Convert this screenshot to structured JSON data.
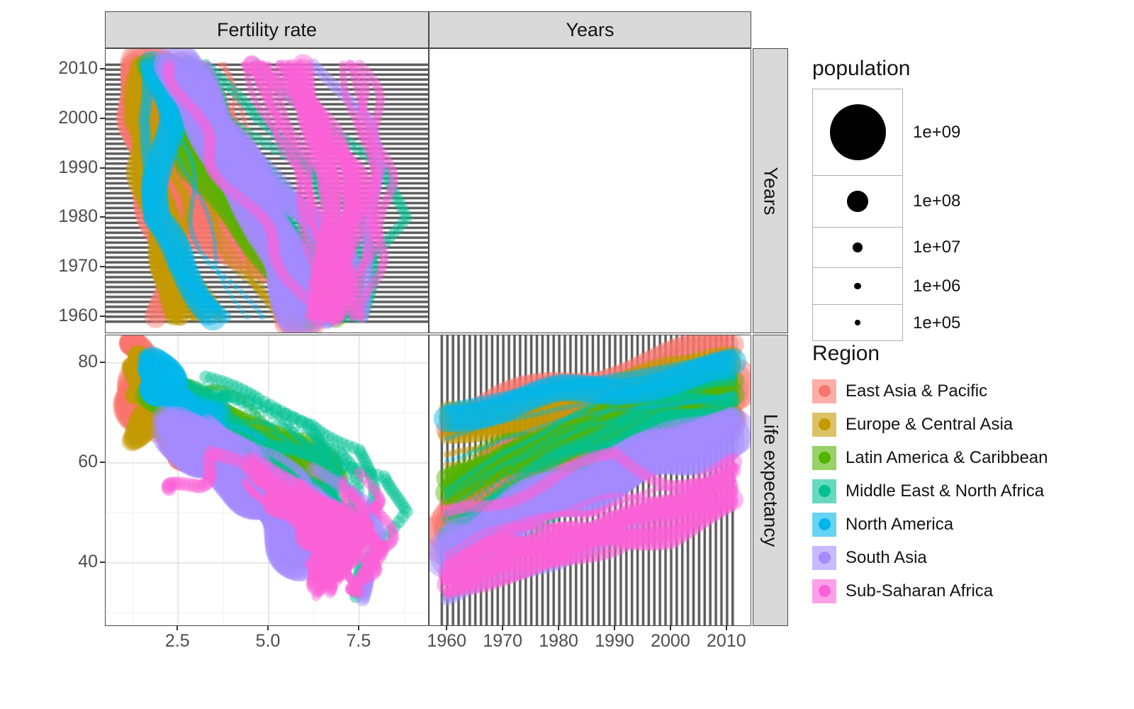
{
  "figure": {
    "facets": {
      "col_labels": [
        "Fertility rate",
        "Years"
      ],
      "row_labels": [
        "Years",
        "Life expectancy"
      ]
    },
    "legend_population": {
      "title": "population",
      "entries": [
        {
          "label": "1e+09",
          "value": 1000000000.0
        },
        {
          "label": "1e+08",
          "value": 100000000.0
        },
        {
          "label": "1e+07",
          "value": 10000000.0
        },
        {
          "label": "1e+06",
          "value": 1000000.0
        },
        {
          "label": "1e+05",
          "value": 100000.0
        }
      ]
    },
    "legend_region": {
      "title": "Region",
      "entries": [
        {
          "label": "East Asia & Pacific",
          "color": "#F8766D"
        },
        {
          "label": "Europe & Central Asia",
          "color": "#C49A00"
        },
        {
          "label": "Latin America & Caribbean",
          "color": "#53B400"
        },
        {
          "label": "Middle East & North Africa",
          "color": "#00C094"
        },
        {
          "label": "North America",
          "color": "#00B6EB"
        },
        {
          "label": "South Asia",
          "color": "#A58AFF"
        },
        {
          "label": "Sub-Saharan Africa",
          "color": "#FB61D7"
        }
      ]
    }
  },
  "chart_data": {
    "type": "scatter",
    "layout": "facet_grid 2x2; columns: Fertility rate, Years; rows: Years, Life expectancy; top-right panel (Years vs Years) is empty",
    "title": "",
    "x_fertility_ticks": [
      2.5,
      5.0,
      7.5
    ],
    "x_year_ticks": [
      1960,
      1970,
      1980,
      1990,
      2000,
      2010
    ],
    "y_year_ticks": [
      2010,
      2000,
      1990,
      1980,
      1970,
      1960
    ],
    "y_life_ticks": [
      80,
      60,
      40
    ],
    "fertility_domain": [
      0.5,
      9.4
    ],
    "year_domain": [
      1956.8,
      2014.2
    ],
    "life_domain": [
      27.5,
      85.5
    ],
    "stripe_years": [
      1959,
      2011
    ],
    "knot_years": [
      1960,
      1970,
      1980,
      1990,
      2000,
      2010
    ],
    "size_scale": "point radius ~ sqrt(population), legend 1e+05 .. 1e+09",
    "regions": [
      {
        "name": "East Asia & Pacific",
        "color": "#F8766D",
        "traj": [
          {
            "pop": 1000000000.0,
            "n": 1,
            "fert": [
              5.8,
              5.7,
              2.7,
              2.3,
              1.5,
              1.6
            ],
            "life": [
              44,
              59,
              66,
              69,
              72,
              75
            ]
          },
          {
            "pop": 120000000.0,
            "n": 1,
            "fert": [
              2.0,
              2.1,
              1.8,
              1.6,
              1.4,
              1.4
            ],
            "life": [
              68,
              72,
              76,
              79,
              81,
              83
            ]
          },
          {
            "pop": 200000000.0,
            "n": 2,
            "fert": [
              5.7,
              5.5,
              4.4,
              3.1,
              2.5,
              2.4
            ],
            "life": [
              48,
              54,
              58,
              62,
              66,
              69
            ]
          },
          {
            "pop": 8000000.0,
            "n": 6,
            "fert": [
              6.4,
              6.0,
              5.0,
              4.2,
              3.6,
              3.1
            ],
            "life": [
              50,
              55,
              60,
              64,
              67,
              70
            ]
          },
          {
            "pop": 300000.0,
            "n": 8,
            "fert": [
              6.8,
              6.2,
              5.4,
              4.6,
              4.0,
              3.4
            ],
            "life": [
              48,
              54,
              59,
              63,
              66,
              69
            ]
          }
        ]
      },
      {
        "name": "Europe & Central Asia",
        "color": "#C49A00",
        "traj": [
          {
            "pop": 140000000.0,
            "n": 1,
            "fert": [
              2.6,
              2.0,
              1.9,
              1.9,
              1.2,
              1.6
            ],
            "life": [
              66,
              68,
              68,
              69,
              65,
              69
            ]
          },
          {
            "pop": 70000000.0,
            "n": 3,
            "fert": [
              2.4,
              2.2,
              1.8,
              1.5,
              1.4,
              1.5
            ],
            "life": [
              69,
              71,
              73,
              75,
              78,
              80
            ]
          },
          {
            "pop": 70000000.0,
            "n": 2,
            "fert": [
              6.3,
              5.6,
              4.5,
              3.1,
              2.4,
              2.1
            ],
            "life": [
              48,
              54,
              59,
              64,
              70,
              74
            ]
          },
          {
            "pop": 8000000.0,
            "n": 8,
            "fert": [
              3.1,
              2.6,
              2.3,
              2.0,
              1.6,
              1.5
            ],
            "life": [
              67,
              69,
              71,
              72,
              74,
              77
            ]
          },
          {
            "pop": 3000000.0,
            "n": 5,
            "fert": [
              5.5,
              4.5,
              3.8,
              3.2,
              2.5,
              2.2
            ],
            "life": [
              58,
              62,
              65,
              67,
              70,
              73
            ]
          }
        ]
      },
      {
        "name": "Latin America & Caribbean",
        "color": "#53B400",
        "traj": [
          {
            "pop": 190000000.0,
            "n": 1,
            "fert": [
              6.2,
              5.0,
              4.1,
              2.8,
              2.4,
              1.8
            ],
            "life": [
              54,
              59,
              62,
              66,
              70,
              73
            ]
          },
          {
            "pop": 110000000.0,
            "n": 1,
            "fert": [
              6.8,
              6.6,
              4.7,
              3.4,
              2.6,
              2.3
            ],
            "life": [
              57,
              61,
              66,
              71,
              74,
              76
            ]
          },
          {
            "pop": 20000000.0,
            "n": 5,
            "fert": [
              6.1,
              5.5,
              4.4,
              3.4,
              2.8,
              2.4
            ],
            "life": [
              55,
              60,
              64,
              68,
              72,
              74
            ]
          },
          {
            "pop": 2000000.0,
            "n": 8,
            "fert": [
              6.3,
              5.8,
              4.8,
              3.8,
              3.0,
              2.4
            ],
            "life": [
              56,
              61,
              65,
              69,
              72,
              74
            ]
          }
        ]
      },
      {
        "name": "Middle East & North Africa",
        "color": "#00C094",
        "traj": [
          {
            "pop": 80000000.0,
            "n": 1,
            "fert": [
              6.6,
              6.0,
              5.4,
              4.4,
              3.3,
              2.8
            ],
            "life": [
              45,
              52,
              58,
              63,
              68,
              70
            ]
          },
          {
            "pop": 27000000.0,
            "n": 2,
            "fert": [
              7.2,
              7.3,
              7.2,
              5.9,
              4.1,
              3.0
            ],
            "life": [
              43,
              52,
              61,
              68,
              72,
              74
            ]
          },
          {
            "pop": 20000000.0,
            "n": 1,
            "fert": [
              7.3,
              7.6,
              8.7,
              8.2,
              6.2,
              4.8
            ],
            "life": [
              33,
              40,
              50,
              57,
              61,
              64
            ]
          },
          {
            "pop": 2000000.0,
            "n": 5,
            "fert": [
              7.0,
              6.8,
              5.5,
              4.0,
              2.6,
              2.1
            ],
            "life": [
              52,
              60,
              66,
              71,
              75,
              77
            ]
          },
          {
            "pop": 30000000.0,
            "n": 2,
            "fert": [
              7.4,
              7.0,
              6.3,
              5.0,
              3.6,
              2.9
            ],
            "life": [
              47,
              53,
              59,
              65,
              70,
              73
            ]
          }
        ]
      },
      {
        "name": "North America",
        "color": "#00B6EB",
        "traj": [
          {
            "pop": 250000000.0,
            "n": 1,
            "fert": [
              3.6,
              2.5,
              1.8,
              2.1,
              2.1,
              1.9
            ],
            "life": [
              70,
              71,
              74,
              75,
              77,
              79
            ]
          },
          {
            "pop": 25000000.0,
            "n": 1,
            "fert": [
              3.9,
              2.3,
              1.7,
              1.8,
              1.5,
              1.6
            ],
            "life": [
              71,
              73,
              75,
              77,
              79,
              81
            ]
          },
          {
            "pop": 300000.0,
            "n": 2,
            "fert": [
              4.5,
              3.5,
              3.0,
              2.6,
              2.3,
              2.0
            ],
            "life": [
              64,
              68,
              71,
              73,
              75,
              77
            ]
          }
        ]
      },
      {
        "name": "South Asia",
        "color": "#A58AFF",
        "traj": [
          {
            "pop": 1100000000.0,
            "n": 1,
            "fert": [
              5.9,
              5.5,
              4.9,
              4.0,
              3.3,
              2.6
            ],
            "life": [
              42,
              48,
              54,
              58,
              62,
              66
            ]
          },
          {
            "pop": 140000000.0,
            "n": 2,
            "fert": [
              6.7,
              6.9,
              6.2,
              4.5,
              3.2,
              2.3
            ],
            "life": [
              46,
              46,
              54,
              59,
              65,
              69
            ]
          },
          {
            "pop": 25000000.0,
            "n": 1,
            "fert": [
              7.5,
              7.7,
              7.8,
              8.0,
              7.7,
              6.4
            ],
            "life": [
              32,
              37,
              41,
              46,
              51,
              58
            ]
          },
          {
            "pop": 15000000.0,
            "n": 3,
            "fert": [
              6.1,
              6.2,
              5.6,
              4.8,
              3.8,
              2.9
            ],
            "life": [
              45,
              50,
              56,
              61,
              65,
              68
            ]
          }
        ]
      },
      {
        "name": "Sub-Saharan Africa",
        "color": "#FB61D7",
        "traj": [
          {
            "pop": 130000000.0,
            "n": 1,
            "fert": [
              6.4,
              6.5,
              6.8,
              6.6,
              6.1,
              6.0
            ],
            "life": [
              37,
              41,
              45,
              46,
              46,
              51
            ]
          },
          {
            "pop": 70000000.0,
            "n": 2,
            "fert": [
              6.9,
              7.1,
              7.4,
              7.4,
              6.5,
              4.8
            ],
            "life": [
              38,
              43,
              44,
              47,
              52,
              59
            ]
          },
          {
            "pop": 50000000.0,
            "n": 1,
            "fert": [
              6.2,
              5.6,
              4.6,
              3.7,
              2.9,
              2.5
            ],
            "life": [
              49,
              53,
              57,
              62,
              56,
              54
            ]
          },
          {
            "pop": 15000000.0,
            "n": 6,
            "fert": [
              6.6,
              6.9,
              7.2,
              7.0,
              6.4,
              5.6
            ],
            "life": [
              36,
              40,
              44,
              47,
              49,
              54
            ]
          },
          {
            "pop": 3000000.0,
            "n": 8,
            "fert": [
              6.5,
              6.6,
              6.4,
              6.0,
              5.4,
              4.8
            ],
            "life": [
              40,
              44,
              48,
              50,
              52,
              57
            ]
          },
          {
            "pop": 12000000.0,
            "n": 4,
            "fert": [
              7.3,
              7.5,
              7.9,
              7.8,
              7.7,
              7.2
            ],
            "life": [
              35,
              38,
              41,
              44,
              48,
              55
            ]
          }
        ]
      }
    ]
  }
}
